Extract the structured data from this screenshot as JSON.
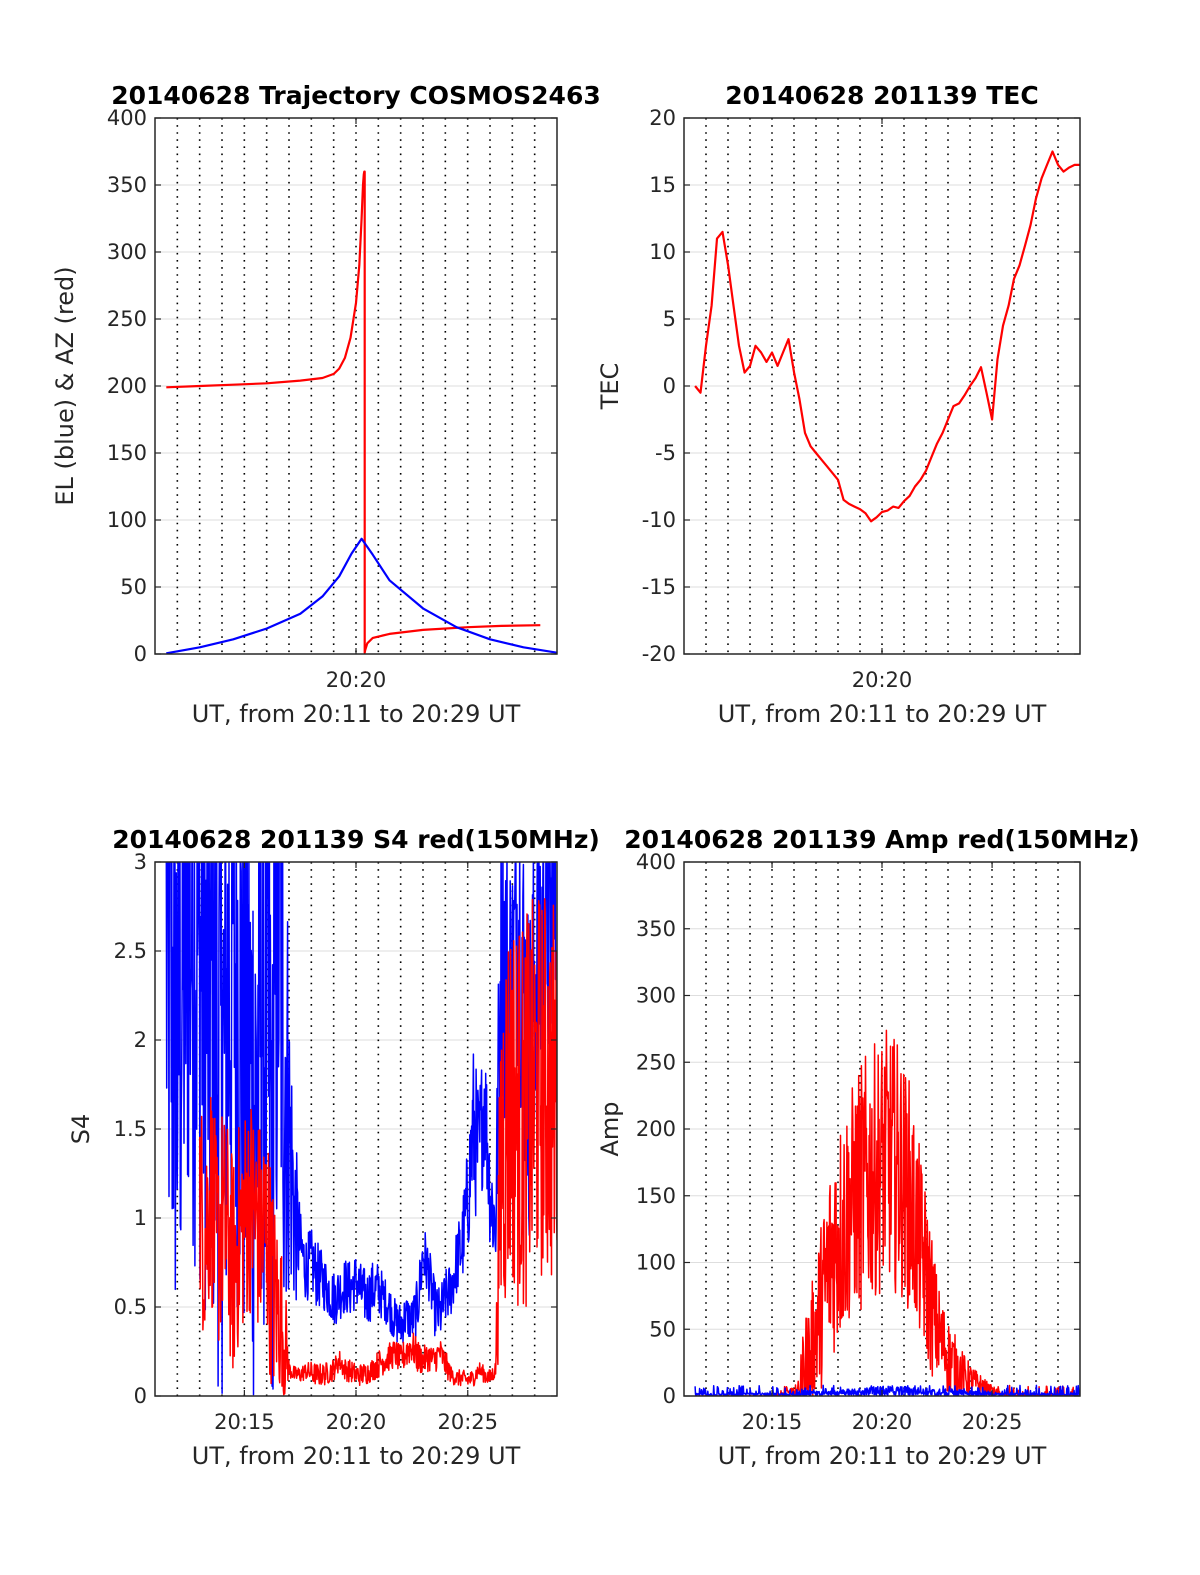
{
  "chart_data": [
    {
      "type": "line",
      "title": "20140628 Trajectory COSMOS2463",
      "xlabel": "UT, from 20:11 to 20:29 UT",
      "ylabel": "EL (blue) & AZ (red)",
      "xlim": [
        20.1833,
        20.4833
      ],
      "ylim": [
        0,
        400
      ],
      "yticks": [
        0,
        50,
        100,
        150,
        200,
        250,
        300,
        350,
        400
      ],
      "xticks": [
        {
          "value": 20.3333,
          "label": "20:20"
        }
      ],
      "grid": "x dotted, y solid light",
      "series": [
        {
          "color": "#ff0000",
          "style": "line",
          "x": [
            20.1917,
            20.2167,
            20.2417,
            20.2667,
            20.2917,
            20.3083,
            20.3167,
            20.3208,
            20.325,
            20.3292,
            20.3333,
            20.3358,
            20.3375,
            20.3385,
            20.3391,
            20.3395,
            20.3398,
            20.3398,
            20.3402,
            20.3417,
            20.3458,
            20.3583,
            20.3833,
            20.4167,
            20.4417,
            20.4708
          ],
          "y": [
            199,
            200,
            201,
            202,
            204,
            206,
            209,
            213,
            221,
            236,
            262,
            290,
            325,
            350,
            358,
            360,
            360,
            1,
            3,
            8,
            12,
            15,
            18,
            20,
            21,
            21.5
          ]
        },
        {
          "color": "#0000ff",
          "style": "line",
          "x": [
            20.1917,
            20.2167,
            20.2417,
            20.2667,
            20.2917,
            20.3083,
            20.3208,
            20.33,
            20.3375,
            20.3458,
            20.3583,
            20.3833,
            20.4083,
            20.4333,
            20.4583,
            20.4833
          ],
          "y": [
            0.5,
            5,
            11,
            19,
            30,
            43,
            58,
            75,
            86,
            74,
            55,
            34,
            20,
            11,
            5,
            1
          ]
        }
      ]
    },
    {
      "type": "line",
      "title": "20140628 201139 TEC",
      "xlabel": "UT, from 20:11 to 20:29 UT",
      "ylabel": "TEC",
      "xlim": [
        20.1833,
        20.4833
      ],
      "ylim": [
        -20,
        20
      ],
      "yticks": [
        -20,
        -15,
        -10,
        -5,
        0,
        5,
        10,
        15,
        20
      ],
      "xticks": [
        {
          "value": 20.3333,
          "label": "20:20"
        }
      ],
      "grid": "x dotted, y solid light",
      "series": [
        {
          "color": "#ff0000",
          "style": "line",
          "x": [
            20.1917,
            20.1958,
            20.2,
            20.2042,
            20.2083,
            20.2125,
            20.2167,
            20.2208,
            20.225,
            20.2292,
            20.2333,
            20.2375,
            20.2417,
            20.2458,
            20.25,
            20.2542,
            20.2583,
            20.2625,
            20.2667,
            20.2708,
            20.275,
            20.2792,
            20.2833,
            20.2875,
            20.2917,
            20.2958,
            20.3,
            20.3042,
            20.3083,
            20.3125,
            20.3167,
            20.3208,
            20.325,
            20.3292,
            20.3333,
            20.3375,
            20.3417,
            20.3458,
            20.35,
            20.3542,
            20.3583,
            20.3625,
            20.3667,
            20.3708,
            20.375,
            20.3792,
            20.3833,
            20.3875,
            20.3917,
            20.3958,
            20.4,
            20.4042,
            20.4083,
            20.4125,
            20.4167,
            20.4208,
            20.425,
            20.4292,
            20.4333,
            20.4375,
            20.4417,
            20.4458,
            20.45,
            20.4542,
            20.4583,
            20.4625,
            20.4667,
            20.4708,
            20.475,
            20.4792,
            20.4833
          ],
          "y": [
            0,
            -0.5,
            3,
            6,
            11,
            11.5,
            9,
            6,
            3,
            1,
            1.5,
            3,
            2.5,
            1.8,
            2.5,
            1.5,
            2.5,
            3.5,
            1,
            -1,
            -3.5,
            -4.5,
            -5,
            -5.5,
            -6,
            -6.5,
            -7,
            -8.5,
            -8.8,
            -9,
            -9.2,
            -9.5,
            -10.1,
            -9.8,
            -9.4,
            -9.3,
            -9,
            -9.1,
            -8.6,
            -8.2,
            -7.5,
            -7,
            -6.3,
            -5.3,
            -4.3,
            -3.5,
            -2.5,
            -1.5,
            -1.3,
            -0.7,
            0,
            0.6,
            1.4,
            -0.5,
            -2.5,
            2,
            4.5,
            6,
            8,
            9,
            10.5,
            12,
            14,
            15.5,
            16.5,
            17.5,
            16.5,
            16,
            16.3,
            16.5,
            16.5
          ]
        }
      ]
    },
    {
      "type": "line",
      "title": "20140628 201139 S4 red(150MHz)",
      "xlabel": "UT, from 20:11 to 20:29 UT",
      "ylabel": "S4",
      "xlim": [
        20.1833,
        20.4833
      ],
      "ylim": [
        0,
        3
      ],
      "yticks": [
        0,
        0.5,
        1,
        1.5,
        2,
        2.5,
        3
      ],
      "xticks": [
        {
          "value": 20.25,
          "label": "20:15"
        },
        {
          "value": 20.3333,
          "label": "20:20"
        },
        {
          "value": 20.4167,
          "label": "20:25"
        }
      ],
      "grid": "x dotted, y solid light",
      "series": [
        {
          "color": "#0000ff",
          "style": "noisy",
          "x": [
            20.1917,
            20.2,
            20.2083,
            20.2167,
            20.225,
            20.2333,
            20.2417,
            20.25,
            20.2583,
            20.2625,
            20.2667,
            20.2708,
            20.275,
            20.2792,
            20.2833,
            20.2875,
            20.2917,
            20.2958,
            20.3,
            20.3042,
            20.3083,
            20.3125,
            20.3167,
            20.3208,
            20.325,
            20.3292,
            20.3333,
            20.3375,
            20.3417,
            20.3458,
            20.35,
            20.3542,
            20.3583,
            20.3625,
            20.3667,
            20.3708,
            20.375,
            20.3792,
            20.3833,
            20.3875,
            20.3917,
            20.3958,
            20.4,
            20.4042,
            20.4083,
            20.4125,
            20.4167,
            20.4208,
            20.425,
            20.4292,
            20.4333,
            20.4375,
            20.4417,
            20.4458,
            20.45,
            20.4542,
            20.4583,
            20.4625,
            20.4667,
            20.4708,
            20.475,
            20.4792,
            20.4833
          ],
          "y": [
            2.5,
            2.0,
            2.8,
            2.5,
            2.2,
            1.8,
            2.6,
            2.0,
            1.6,
            2.4,
            2.0,
            1.4,
            2.8,
            2.2,
            1.5,
            1.0,
            0.85,
            0.72,
            0.75,
            0.68,
            0.65,
            0.6,
            0.55,
            0.58,
            0.62,
            0.6,
            0.65,
            0.58,
            0.55,
            0.6,
            0.6,
            0.55,
            0.5,
            0.42,
            0.4,
            0.45,
            0.42,
            0.5,
            0.8,
            0.7,
            0.5,
            0.45,
            0.55,
            0.6,
            0.75,
            0.85,
            1.1,
            1.5,
            1.35,
            1.7,
            1.15,
            0.95,
            2.6,
            2.3,
            2.2,
            2.8,
            2.3,
            1.8,
            2.4,
            2.5,
            2.7,
            2.6,
            2.8
          ],
          "noise": [
            1.2,
            1.2,
            1.2,
            1.2,
            1.2,
            1.2,
            1.2,
            1.2,
            1.2,
            1.2,
            1.2,
            1.2,
            1.2,
            1.2,
            0.6,
            0.35,
            0.12,
            0.12,
            0.12,
            0.12,
            0.1,
            0.1,
            0.1,
            0.1,
            0.1,
            0.1,
            0.1,
            0.1,
            0.1,
            0.1,
            0.1,
            0.08,
            0.08,
            0.08,
            0.08,
            0.08,
            0.08,
            0.1,
            0.12,
            0.1,
            0.1,
            0.1,
            0.1,
            0.1,
            0.12,
            0.15,
            0.2,
            0.3,
            0.25,
            0.25,
            0.2,
            0.2,
            0.6,
            0.6,
            0.6,
            0.6,
            0.6,
            0.6,
            0.6,
            0.6,
            0.6,
            0.6,
            0.6
          ]
        },
        {
          "color": "#ff0000",
          "style": "noisy",
          "x": [
            20.2167,
            20.2208,
            20.225,
            20.2292,
            20.2333,
            20.2375,
            20.2417,
            20.2458,
            20.25,
            20.2542,
            20.2583,
            20.2625,
            20.2667,
            20.2708,
            20.275,
            20.2792,
            20.2833,
            20.2875,
            20.2917,
            20.2958,
            20.3,
            20.3042,
            20.3083,
            20.3125,
            20.3167,
            20.3208,
            20.325,
            20.3292,
            20.3333,
            20.3375,
            20.3417,
            20.3458,
            20.35,
            20.3542,
            20.3583,
            20.3625,
            20.3667,
            20.3708,
            20.375,
            20.3792,
            20.3833,
            20.3875,
            20.3917,
            20.3958,
            20.4,
            20.4042,
            20.4083,
            20.4125,
            20.4167,
            20.4208,
            20.425,
            20.4292,
            20.4333,
            20.4375,
            20.4417,
            20.4458,
            20.45,
            20.4542,
            20.4583,
            20.4625,
            20.4667,
            20.4708,
            20.475,
            20.4792,
            20.4833
          ],
          "y": [
            1.1,
            0.9,
            1.2,
            0.8,
            1.0,
            0.9,
            0.7,
            0.9,
            1.0,
            1.1,
            1.0,
            0.9,
            0.95,
            0.6,
            0.5,
            0.4,
            0.15,
            0.12,
            0.12,
            0.14,
            0.13,
            0.12,
            0.12,
            0.13,
            0.15,
            0.2,
            0.15,
            0.14,
            0.12,
            0.12,
            0.13,
            0.15,
            0.18,
            0.2,
            0.22,
            0.24,
            0.2,
            0.25,
            0.28,
            0.22,
            0.2,
            0.22,
            0.2,
            0.25,
            0.18,
            0.12,
            0.1,
            0.1,
            0.09,
            0.1,
            0.15,
            0.12,
            0.1,
            0.15,
            1.4,
            1.6,
            1.7,
            1.6,
            1.55,
            1.65,
            1.7,
            1.75,
            1.75,
            1.7,
            1.75
          ],
          "noise": [
            0.4,
            0.4,
            0.4,
            0.4,
            0.4,
            0.4,
            0.4,
            0.4,
            0.4,
            0.4,
            0.4,
            0.4,
            0.4,
            0.4,
            0.3,
            0.3,
            0.03,
            0.03,
            0.03,
            0.03,
            0.04,
            0.04,
            0.04,
            0.04,
            0.04,
            0.04,
            0.04,
            0.04,
            0.04,
            0.04,
            0.04,
            0.04,
            0.05,
            0.05,
            0.05,
            0.05,
            0.05,
            0.06,
            0.06,
            0.06,
            0.05,
            0.05,
            0.05,
            0.05,
            0.05,
            0.03,
            0.03,
            0.03,
            0.03,
            0.03,
            0.03,
            0.03,
            0.03,
            0.03,
            0.7,
            0.7,
            0.7,
            0.7,
            0.7,
            0.7,
            0.7,
            0.7,
            0.7,
            0.7,
            0.7
          ]
        }
      ]
    },
    {
      "type": "line",
      "title": "20140628 201139 Amp red(150MHz)",
      "xlabel": "UT, from 20:11 to 20:29 UT",
      "ylabel": "Amp",
      "xlim": [
        20.1833,
        20.4833
      ],
      "ylim": [
        0,
        400
      ],
      "yticks": [
        0,
        50,
        100,
        150,
        200,
        250,
        300,
        350,
        400
      ],
      "xticks": [
        {
          "value": 20.25,
          "label": "20:15"
        },
        {
          "value": 20.3333,
          "label": "20:20"
        },
        {
          "value": 20.4167,
          "label": "20:25"
        }
      ],
      "grid": "x dotted, y solid light",
      "series": [
        {
          "color": "#ff0000",
          "style": "noisy",
          "x": [
            20.1917,
            20.25,
            20.2583,
            20.2625,
            20.2667,
            20.2708,
            20.275,
            20.2792,
            20.2833,
            20.2875,
            20.2917,
            20.2958,
            20.3,
            20.3042,
            20.3083,
            20.3125,
            20.3167,
            20.3208,
            20.325,
            20.3292,
            20.3333,
            20.3375,
            20.3417,
            20.3458,
            20.35,
            20.3542,
            20.3583,
            20.3625,
            20.3667,
            20.3708,
            20.375,
            20.3792,
            20.3833,
            20.3875,
            20.3917,
            20.3958,
            20.4,
            20.4042,
            20.4083,
            20.4125,
            20.4167,
            20.4208,
            20.425,
            20.4292,
            20.4833
          ],
          "y": [
            0,
            0,
            0.5,
            1,
            3,
            5,
            20,
            30,
            50,
            70,
            90,
            110,
            120,
            130,
            140,
            150,
            155,
            160,
            165,
            170,
            175,
            180,
            175,
            170,
            160,
            150,
            130,
            110,
            90,
            70,
            50,
            40,
            30,
            25,
            20,
            15,
            12,
            10,
            8,
            5,
            3,
            2,
            1,
            0.5,
            0
          ],
          "noise": [
            0,
            0,
            1,
            2,
            5,
            10,
            25,
            30,
            35,
            40,
            45,
            50,
            55,
            55,
            55,
            55,
            60,
            60,
            60,
            60,
            60,
            60,
            60,
            60,
            55,
            55,
            50,
            45,
            40,
            35,
            25,
            20,
            18,
            15,
            12,
            10,
            8,
            6,
            5,
            4,
            3,
            2,
            1,
            0.5,
            0
          ]
        },
        {
          "color": "#0000ff",
          "style": "noisy",
          "x": [
            20.1917,
            20.2333,
            20.2667,
            20.2917,
            20.3167,
            20.3333,
            20.35,
            20.3667,
            20.3917,
            20.4167,
            20.4833
          ],
          "y": [
            0.5,
            0.8,
            1,
            1.5,
            2,
            2.5,
            2.5,
            2,
            1.5,
            1,
            0.5
          ],
          "noise": [
            0.8,
            0.8,
            1,
            1.5,
            2.5,
            3,
            3,
            2.5,
            2,
            1,
            0.8
          ]
        }
      ]
    }
  ]
}
